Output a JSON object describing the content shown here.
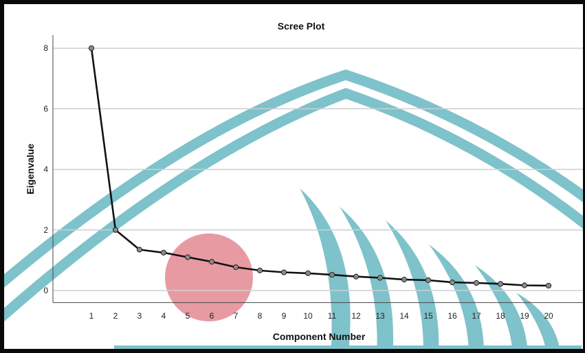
{
  "colors": {
    "line": "#111111",
    "marker_fill": "#8a8a8a",
    "grid": "#cfcfcf",
    "watermark_teal": "#5fb3bf",
    "watermark_red": "#e07a85"
  },
  "chart_data": {
    "type": "line",
    "title": "Scree Plot",
    "xlabel": "Component Number",
    "ylabel": "Eigenvalue",
    "x": [
      1,
      2,
      3,
      4,
      5,
      6,
      7,
      8,
      9,
      10,
      11,
      12,
      13,
      14,
      15,
      16,
      17,
      18,
      19,
      20
    ],
    "values": [
      8.0,
      2.0,
      1.35,
      1.25,
      1.1,
      0.95,
      0.77,
      0.66,
      0.6,
      0.57,
      0.52,
      0.46,
      0.42,
      0.36,
      0.34,
      0.27,
      0.25,
      0.22,
      0.17,
      0.16
    ],
    "xticks": [
      "1",
      "2",
      "3",
      "4",
      "5",
      "6",
      "7",
      "8",
      "9",
      "10",
      "11",
      "12",
      "13",
      "14",
      "15",
      "16",
      "17",
      "18",
      "19",
      "20"
    ],
    "yticks": [
      "0",
      "2",
      "4",
      "6",
      "8"
    ],
    "ylim": [
      -0.4,
      8.4
    ],
    "grid": "horizontal",
    "legend": "none"
  }
}
